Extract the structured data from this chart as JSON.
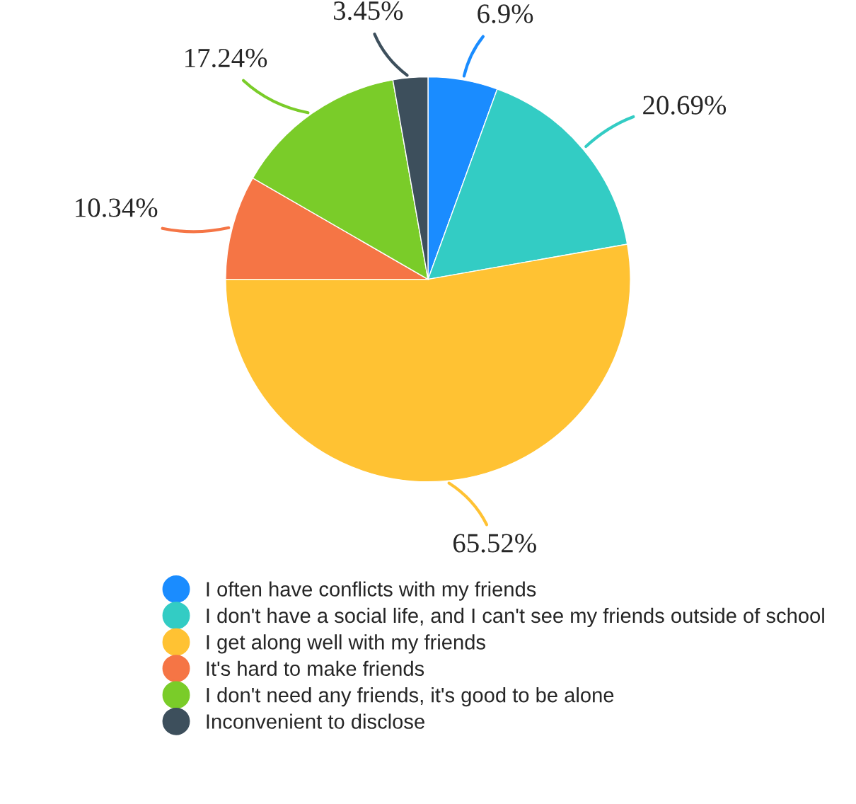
{
  "chart_data": {
    "type": "pie",
    "categories": [
      "I often have conflicts with my friends",
      "I don't have a social life, and I can't see my friends outside of school",
      "I get along well with my friends",
      "It's hard to make friends",
      "I don't need any friends, it's good to be alone",
      "Inconvenient to disclose"
    ],
    "values": [
      6.9,
      20.69,
      65.52,
      10.34,
      17.24,
      3.45
    ],
    "value_labels": [
      "6.9%",
      "20.69%",
      "65.52%",
      "10.34%",
      "17.24%",
      "3.45%"
    ],
    "colors": [
      "#1a8cff",
      "#33ccc4",
      "#ffc233",
      "#f57545",
      "#7acc29",
      "#3d4f5c"
    ],
    "legend": "bottom"
  }
}
